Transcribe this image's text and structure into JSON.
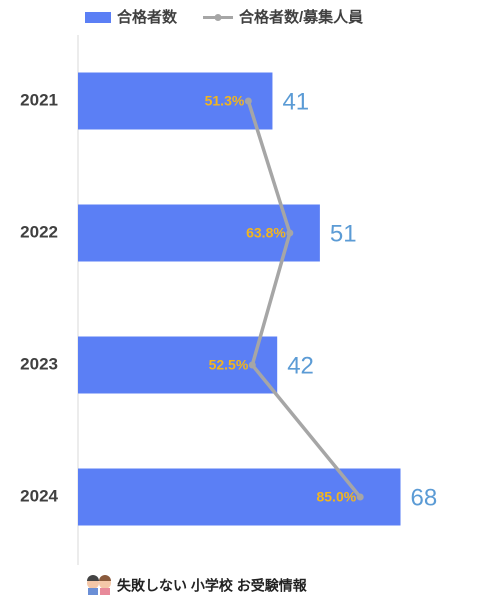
{
  "chart_data": {
    "type": "bar",
    "orientation": "horizontal",
    "categories": [
      "2021",
      "2022",
      "2023",
      "2024"
    ],
    "series": [
      {
        "name": "合格者数",
        "type": "bar",
        "color": "#5b7ff5",
        "label_color": "#5b9bd5",
        "values": [
          41,
          51,
          42,
          68
        ]
      },
      {
        "name": "合格者数/募集人員",
        "type": "line",
        "axis": "x2",
        "color": "#a6a6a6",
        "label_color": "#f2b51f",
        "values": [
          51.3,
          63.8,
          52.5,
          85.0
        ],
        "value_labels": [
          "51.3%",
          "63.8%",
          "52.5%",
          "85.0%"
        ]
      }
    ],
    "xlim": [
      0,
      70
    ],
    "x2lim": [
      0,
      100
    ],
    "legend": "top",
    "footer": "失敗しない 小学校 お受験情報"
  }
}
